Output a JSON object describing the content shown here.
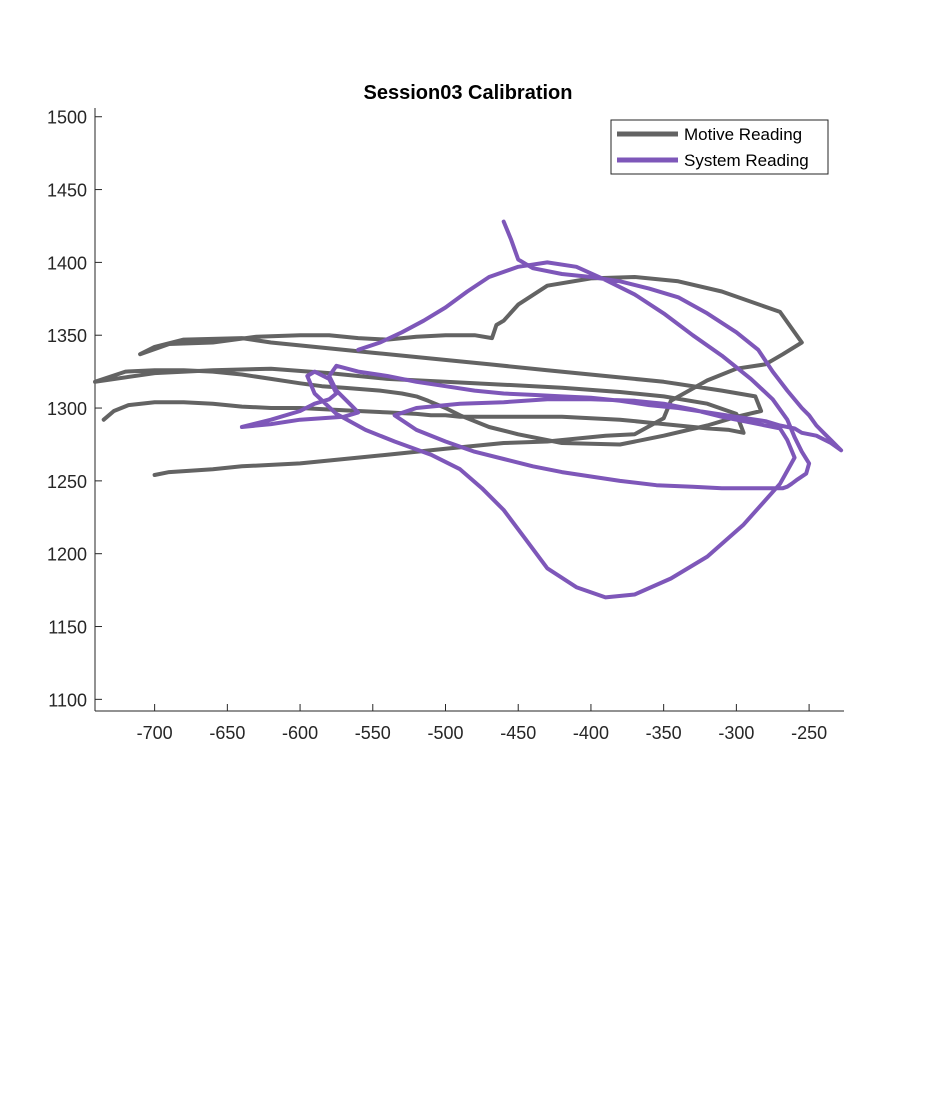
{
  "chart_data": {
    "type": "line",
    "title": "Session03 Calibration",
    "xlabel": "",
    "ylabel": "",
    "xlim": [
      -741,
      -226
    ],
    "ylim": [
      1092,
      1506
    ],
    "xticks": [
      -700,
      -650,
      -600,
      -550,
      -500,
      -450,
      -400,
      -350,
      -300,
      -250
    ],
    "yticks": [
      1100,
      1150,
      1200,
      1250,
      1300,
      1350,
      1400,
      1450,
      1500
    ],
    "grid": false,
    "legend_position": "top-right",
    "series": [
      {
        "name": "Motive Reading",
        "color": "#636363",
        "x": [
          -735,
          -728,
          -718,
          -700,
          -680,
          -660,
          -640,
          -620,
          -600,
          -580,
          -560,
          -540,
          -520,
          -510,
          -500,
          -490,
          -480,
          -470,
          -460,
          -440,
          -420,
          -400,
          -380,
          -360,
          -340,
          -320,
          -305,
          -295,
          -300,
          -320,
          -350,
          -380,
          -420,
          -460,
          -500,
          -540,
          -580,
          -620,
          -660,
          -700,
          -741,
          -720,
          -700,
          -680,
          -660,
          -640,
          -620,
          -600,
          -585,
          -570,
          -545,
          -530,
          -520,
          -512,
          -500,
          -490,
          -470,
          -450,
          -420,
          -380,
          -350,
          -320,
          -300,
          -283,
          -287,
          -310,
          -350,
          -390,
          -430,
          -470,
          -510,
          -550,
          -590,
          -620,
          -640,
          -680,
          -700,
          -710,
          -690,
          -660,
          -630,
          -600,
          -580,
          -560,
          -540,
          -520,
          -500,
          -480,
          -468,
          -465,
          -460,
          -450,
          -430,
          -400,
          -370,
          -340,
          -310,
          -270,
          -255,
          -268,
          -280,
          -300,
          -320,
          -345,
          -350,
          -370,
          -390,
          -410,
          -430,
          -460,
          -480,
          -500,
          -520,
          -540,
          -560,
          -580,
          -600,
          -640,
          -660,
          -690,
          -700
        ],
        "y": [
          1292,
          1298,
          1302,
          1304,
          1304,
          1303,
          1301,
          1300,
          1300,
          1299,
          1298,
          1297,
          1296,
          1295,
          1295,
          1294,
          1294,
          1294,
          1294,
          1294,
          1294,
          1293,
          1292,
          1290,
          1288,
          1286,
          1285,
          1283,
          1296,
          1303,
          1308,
          1311,
          1314,
          1316,
          1318,
          1320,
          1324,
          1327,
          1326,
          1324,
          1318,
          1325,
          1326,
          1326,
          1325,
          1323,
          1320,
          1317,
          1315,
          1314,
          1312,
          1310,
          1308,
          1305,
          1300,
          1295,
          1287,
          1282,
          1276,
          1275,
          1281,
          1288,
          1294,
          1298,
          1308,
          1312,
          1318,
          1322,
          1326,
          1330,
          1334,
          1338,
          1342,
          1345,
          1348,
          1347,
          1342,
          1337,
          1344,
          1345,
          1349,
          1350,
          1350,
          1348,
          1347,
          1349,
          1350,
          1350,
          1348,
          1357,
          1360,
          1371,
          1384,
          1389,
          1390,
          1387,
          1380,
          1366,
          1345,
          1337,
          1330,
          1327,
          1319,
          1305,
          1293,
          1282,
          1281,
          1279,
          1277,
          1276,
          1274,
          1272,
          1270,
          1268,
          1266,
          1264,
          1262,
          1260,
          1258,
          1256,
          1254
        ]
      },
      {
        "name": "System Reading",
        "color": "#7e57b9",
        "x": [
          -460,
          -455,
          -450,
          -440,
          -420,
          -400,
          -380,
          -360,
          -340,
          -320,
          -300,
          -285,
          -275,
          -265,
          -255,
          -250,
          -245,
          -240,
          -235,
          -230,
          -228,
          -235,
          -245,
          -255,
          -260,
          -270,
          -280,
          -300,
          -320,
          -340,
          -360,
          -380,
          -400,
          -420,
          -440,
          -460,
          -480,
          -500,
          -520,
          -540,
          -560,
          -575,
          -580,
          -575,
          -565,
          -560,
          -570,
          -585,
          -600,
          -620,
          -640,
          -620,
          -600,
          -590,
          -580,
          -575,
          -580,
          -590,
          -595,
          -590,
          -575,
          -555,
          -535,
          -510,
          -490,
          -475,
          -460,
          -445,
          -430,
          -410,
          -390,
          -370,
          -345,
          -320,
          -295,
          -270,
          -260,
          -265,
          -270,
          -290,
          -310,
          -330,
          -350,
          -370,
          -400,
          -430,
          -460,
          -490,
          -520,
          -535,
          -520,
          -500,
          -480,
          -460,
          -440,
          -420,
          -400,
          -380,
          -355,
          -330,
          -310,
          -295,
          -280,
          -268,
          -265,
          -262,
          -258,
          -252,
          -250,
          -255,
          -260,
          -265,
          -275,
          -290,
          -310,
          -330,
          -350,
          -370,
          -390,
          -410,
          -430,
          -450,
          -470,
          -485,
          -500,
          -515,
          -530,
          -545,
          -560
        ],
        "y": [
          1428,
          1416,
          1402,
          1396,
          1392,
          1390,
          1387,
          1382,
          1376,
          1365,
          1352,
          1340,
          1325,
          1312,
          1300,
          1295,
          1288,
          1283,
          1278,
          1273,
          1271,
          1276,
          1281,
          1283,
          1286,
          1288,
          1291,
          1294,
          1297,
          1300,
          1302,
          1305,
          1307,
          1308,
          1309,
          1310,
          1312,
          1315,
          1318,
          1322,
          1325,
          1329,
          1322,
          1312,
          1302,
          1297,
          1294,
          1293,
          1292,
          1289,
          1287,
          1292,
          1298,
          1303,
          1306,
          1310,
          1320,
          1325,
          1322,
          1310,
          1296,
          1285,
          1277,
          1268,
          1258,
          1245,
          1230,
          1210,
          1190,
          1177,
          1170,
          1172,
          1183,
          1198,
          1220,
          1248,
          1266,
          1278,
          1286,
          1290,
          1294,
          1299,
          1303,
          1305,
          1306,
          1306,
          1304,
          1303,
          1300,
          1295,
          1285,
          1277,
          1270,
          1265,
          1260,
          1256,
          1253,
          1250,
          1247,
          1246,
          1245,
          1245,
          1245,
          1245,
          1246,
          1248,
          1251,
          1255,
          1262,
          1270,
          1280,
          1292,
          1306,
          1320,
          1336,
          1350,
          1365,
          1378,
          1388,
          1397,
          1400,
          1397,
          1390,
          1380,
          1369,
          1360,
          1352,
          1345,
          1340
        ]
      }
    ]
  }
}
